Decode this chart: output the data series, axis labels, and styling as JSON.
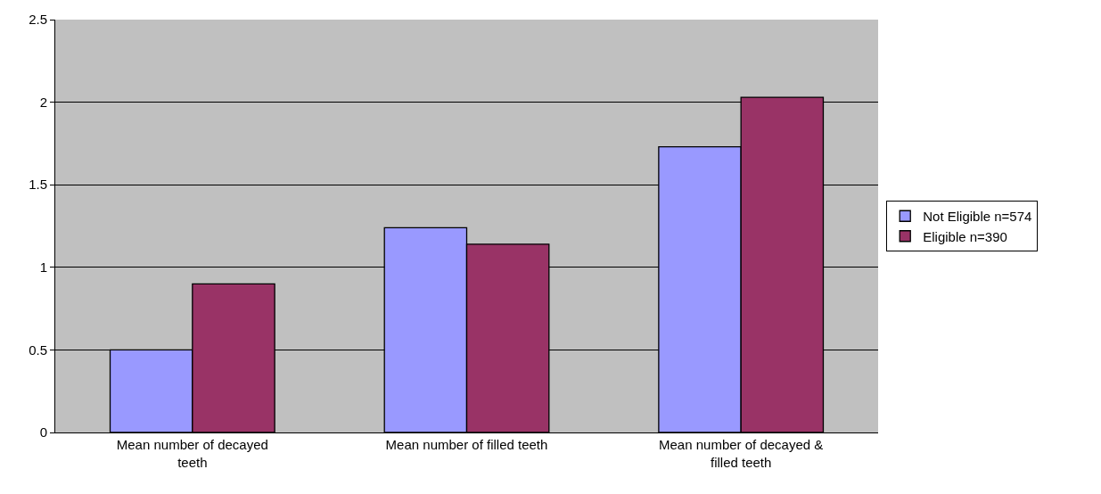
{
  "chart_data": {
    "type": "bar",
    "categories": [
      "Mean number of decayed teeth",
      "Mean number of filled teeth",
      "Mean number of decayed & filled teeth"
    ],
    "series": [
      {
        "name": "Not Eligible n=574",
        "color": "#9999ff",
        "values": [
          0.5,
          1.24,
          1.73
        ]
      },
      {
        "name": "Eligible n=390",
        "color": "#993366",
        "values": [
          0.9,
          1.14,
          2.03
        ]
      }
    ],
    "ylim": [
      0,
      2.5
    ],
    "yticks": [
      0,
      0.5,
      1,
      1.5,
      2,
      2.5
    ],
    "grid": "y",
    "legend": "right"
  }
}
